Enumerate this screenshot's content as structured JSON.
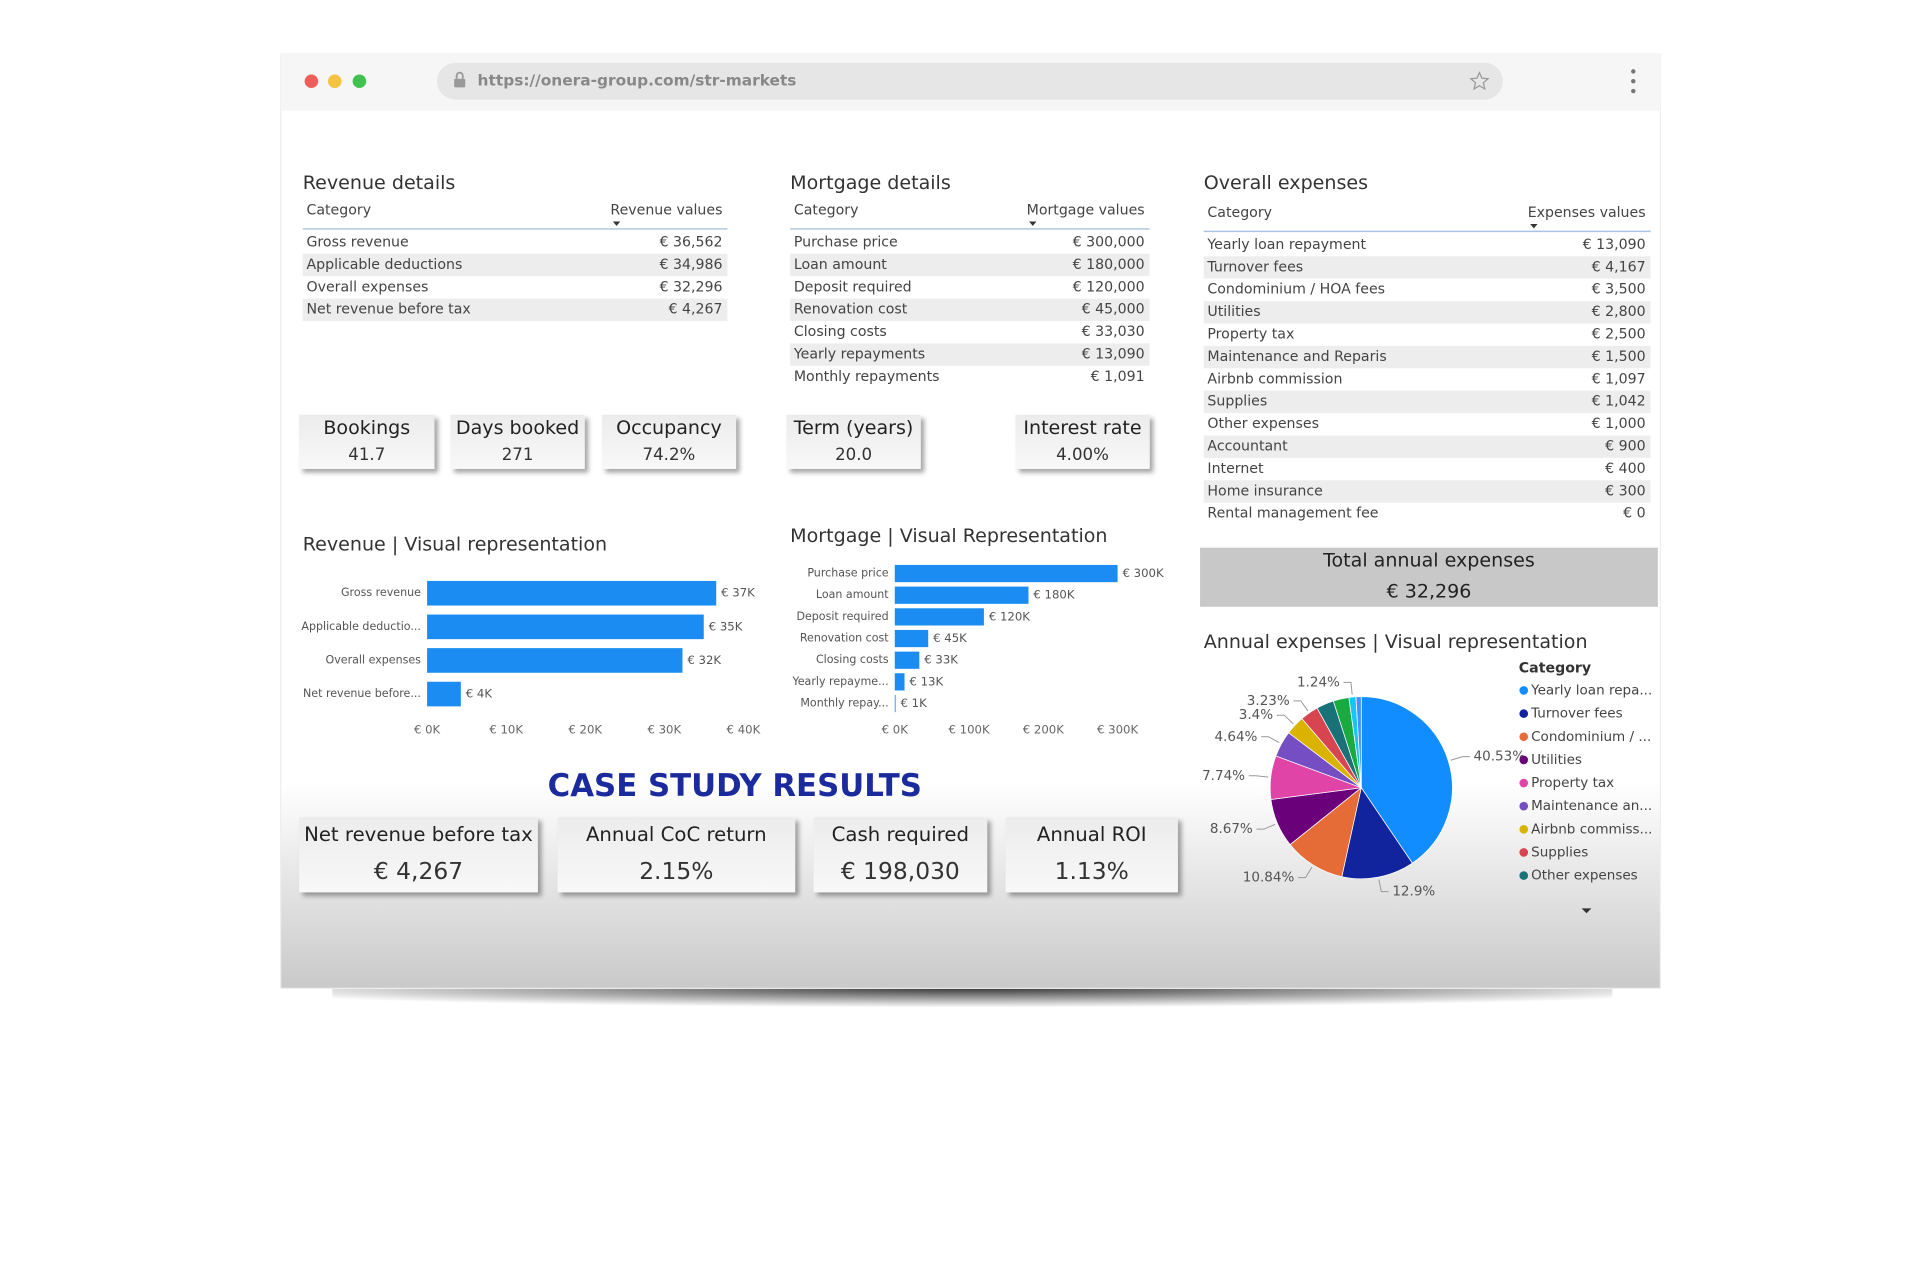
{
  "browser": {
    "url": "https://onera-group.com/str-markets"
  },
  "revenue_details": {
    "title": "Revenue details",
    "columns": [
      "Category",
      "Revenue values"
    ],
    "rows": [
      [
        "Gross revenue",
        "€ 36,562"
      ],
      [
        "Applicable deductions",
        "€ 34,986"
      ],
      [
        "Overall expenses",
        "€ 32,296"
      ],
      [
        "Net revenue before tax",
        "€ 4,267"
      ]
    ]
  },
  "mortgage_details": {
    "title": "Mortgage details",
    "columns": [
      "Category",
      "Mortgage values"
    ],
    "rows": [
      [
        "Purchase price",
        "€ 300,000"
      ],
      [
        "Loan amount",
        "€ 180,000"
      ],
      [
        "Deposit required",
        "€ 120,000"
      ],
      [
        "Renovation cost",
        "€ 45,000"
      ],
      [
        "Closing costs",
        "€ 33,030"
      ],
      [
        "Yearly repayments",
        "€ 13,090"
      ],
      [
        "Monthly repayments",
        "€ 1,091"
      ]
    ]
  },
  "overall_expenses": {
    "title": "Overall expenses",
    "columns": [
      "Category",
      "Expenses values"
    ],
    "rows": [
      [
        "Yearly loan repayment",
        "€ 13,090"
      ],
      [
        "Turnover fees",
        "€ 4,167"
      ],
      [
        "Condominium / HOA fees",
        "€ 3,500"
      ],
      [
        "Utilities",
        "€ 2,800"
      ],
      [
        "Property tax",
        "€ 2,500"
      ],
      [
        "Maintenance and Reparis",
        "€ 1,500"
      ],
      [
        "Airbnb commission",
        "€ 1,097"
      ],
      [
        "Supplies",
        "€ 1,042"
      ],
      [
        "Other expenses",
        "€ 1,000"
      ],
      [
        "Accountant",
        "€ 900"
      ],
      [
        "Internet",
        "€ 400"
      ],
      [
        "Home insurance",
        "€ 300"
      ],
      [
        "Rental management fee",
        "€ 0"
      ]
    ]
  },
  "revenue_kpis": [
    {
      "label": "Bookings",
      "value": "41.7"
    },
    {
      "label": "Days booked",
      "value": "271"
    },
    {
      "label": "Occupancy",
      "value": "74.2%"
    }
  ],
  "mortgage_kpis": [
    {
      "label": "Term (years)",
      "value": "20.0"
    },
    {
      "label": "Interest rate",
      "value": "4.00%"
    }
  ],
  "total_annual_expenses": {
    "label": "Total annual expenses",
    "value": "€ 32,296"
  },
  "case_study": {
    "title": "CASE STUDY RESULTS",
    "results": [
      {
        "label": "Net revenue before tax",
        "value": "€ 4,267"
      },
      {
        "label": "Annual CoC return",
        "value": "2.15%"
      },
      {
        "label": "Cash required",
        "value": "€ 198,030"
      },
      {
        "label": "Annual ROI",
        "value": "1.13%"
      }
    ]
  },
  "charts": [
    {
      "type": "hbar",
      "title": "Revenue | Visual representation",
      "color": "#1a8cf2",
      "categories": [
        "Gross revenue",
        "Applicable deductio...",
        "Overall expenses",
        "Net revenue before..."
      ],
      "values": [
        36562,
        34986,
        32296,
        4267
      ],
      "value_labels": [
        "€ 37K",
        "€ 35K",
        "€ 32K",
        "€ 4K"
      ],
      "xlim": [
        0,
        40000
      ],
      "xticks": [
        {
          "value": 0,
          "label": "€ 0K"
        },
        {
          "value": 10000,
          "label": "€ 10K"
        },
        {
          "value": 20000,
          "label": "€ 20K"
        },
        {
          "value": 30000,
          "label": "€ 30K"
        },
        {
          "value": 40000,
          "label": "€ 40K"
        }
      ]
    },
    {
      "type": "hbar",
      "title": "Mortgage | Visual Representation",
      "color": "#1a8cf2",
      "categories": [
        "Purchase price",
        "Loan amount",
        "Deposit required",
        "Renovation cost",
        "Closing costs",
        "Yearly repayme...",
        "Monthly repay..."
      ],
      "values": [
        300000,
        180000,
        120000,
        45000,
        33030,
        13090,
        1091
      ],
      "value_labels": [
        "€ 300K",
        "€ 180K",
        "€ 120K",
        "€ 45K",
        "€ 33K",
        "€ 13K",
        "€ 1K"
      ],
      "xlim": [
        0,
        300000
      ],
      "xticks": [
        {
          "value": 0,
          "label": "€ 0K"
        },
        {
          "value": 100000,
          "label": "€ 100K"
        },
        {
          "value": 200000,
          "label": "€ 200K"
        },
        {
          "value": 300000,
          "label": "€ 300K"
        }
      ]
    },
    {
      "type": "pie",
      "title": "Annual expenses | Visual representation",
      "legend_title": "Category",
      "categories": [
        "Yearly loan repa...",
        "Turnover fees",
        "Condominium / ...",
        "Utilities",
        "Property tax",
        "Maintenance an...",
        "Airbnb commiss...",
        "Supplies",
        "Other expenses",
        null,
        null,
        null
      ],
      "values": [
        40.53,
        12.9,
        10.84,
        8.67,
        7.74,
        4.64,
        3.4,
        3.23,
        3.1,
        2.79,
        1.24,
        0.93
      ],
      "value_labels": [
        "40.53%",
        "12.9%",
        "10.84%",
        "8.67%",
        "7.74%",
        "4.64%",
        "3.4%",
        "3.23%",
        null,
        null,
        "1.24%",
        null
      ],
      "colors": [
        "#118dff",
        "#12239e",
        "#e66c37",
        "#6b007b",
        "#e044a7",
        "#744ec2",
        "#d9b300",
        "#d64550",
        "#197278",
        "#1aab40",
        "#15c6f4",
        "#4092ff"
      ]
    }
  ]
}
